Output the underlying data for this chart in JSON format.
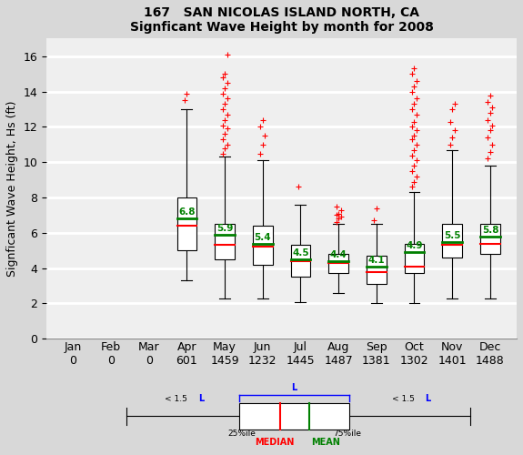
{
  "title_line1": "167   SAN NICOLAS ISLAND NORTH, CA",
  "title_line2": "Signficant Wave Height by month for 2008",
  "ylabel": "Signficant Wave Height, Hs (ft)",
  "months": [
    "Jan",
    "Feb",
    "Mar",
    "Apr",
    "May",
    "Jun",
    "Jul",
    "Aug",
    "Sep",
    "Oct",
    "Nov",
    "Dec"
  ],
  "counts": [
    0,
    0,
    0,
    601,
    1459,
    1232,
    1445,
    1487,
    1381,
    1302,
    1401,
    1488
  ],
  "ylim": [
    0,
    17
  ],
  "yticks": [
    0,
    2,
    4,
    6,
    8,
    10,
    12,
    14,
    16
  ],
  "box_data": {
    "Apr": {
      "q1": 5.0,
      "median": 6.4,
      "q3": 8.0,
      "mean": 6.8,
      "whislo": 3.3,
      "whishi": 13.0,
      "fliers_high": [
        13.5,
        13.9
      ]
    },
    "May": {
      "q1": 4.5,
      "median": 5.3,
      "q3": 6.5,
      "mean": 5.9,
      "whislo": 2.3,
      "whishi": 10.3,
      "fliers_high": [
        10.5,
        10.8,
        11.0,
        11.3,
        11.6,
        11.9,
        12.1,
        12.4,
        12.7,
        13.0,
        13.3,
        13.6,
        13.9,
        14.2,
        14.5,
        14.8,
        15.0,
        16.1
      ]
    },
    "Jun": {
      "q1": 4.2,
      "median": 5.2,
      "q3": 6.4,
      "mean": 5.4,
      "whislo": 2.3,
      "whishi": 10.1,
      "fliers_high": [
        10.5,
        11.0,
        11.5,
        12.0,
        12.4
      ]
    },
    "Jul": {
      "q1": 3.5,
      "median": 4.4,
      "q3": 5.3,
      "mean": 4.5,
      "whislo": 2.1,
      "whishi": 7.6,
      "fliers_high": [
        8.6
      ]
    },
    "Aug": {
      "q1": 3.7,
      "median": 4.3,
      "q3": 4.8,
      "mean": 4.4,
      "whislo": 2.6,
      "whishi": 6.5,
      "fliers_high": [
        6.6,
        6.8,
        6.9,
        7.0,
        7.1,
        7.3,
        7.5
      ]
    },
    "Sep": {
      "q1": 3.1,
      "median": 3.8,
      "q3": 4.7,
      "mean": 4.1,
      "whislo": 2.0,
      "whishi": 6.5,
      "fliers_high": [
        6.7,
        7.4
      ]
    },
    "Oct": {
      "q1": 3.7,
      "median": 4.1,
      "q3": 5.4,
      "mean": 4.9,
      "whislo": 2.0,
      "whishi": 8.3,
      "fliers_high": [
        8.6,
        8.9,
        9.2,
        9.5,
        9.8,
        10.1,
        10.4,
        10.7,
        11.0,
        11.3,
        11.5,
        11.8,
        12.0,
        12.3,
        12.7,
        13.0,
        13.3,
        13.6,
        14.0,
        14.3,
        14.6,
        15.0,
        15.3
      ]
    },
    "Nov": {
      "q1": 4.6,
      "median": 5.3,
      "q3": 6.5,
      "mean": 5.5,
      "whislo": 2.3,
      "whishi": 10.7,
      "fliers_high": [
        11.0,
        11.4,
        11.8,
        12.3,
        13.0,
        13.3
      ]
    },
    "Dec": {
      "q1": 4.8,
      "median": 5.4,
      "q3": 6.5,
      "mean": 5.8,
      "whislo": 2.3,
      "whishi": 9.8,
      "fliers_high": [
        10.2,
        10.6,
        11.0,
        11.4,
        11.8,
        12.1,
        12.4,
        12.8,
        13.1,
        13.4,
        13.8
      ]
    }
  },
  "active_months": [
    "Apr",
    "May",
    "Jun",
    "Jul",
    "Aug",
    "Sep",
    "Oct",
    "Nov",
    "Dec"
  ],
  "box_color": "white",
  "median_color": "#ff0000",
  "mean_color": "#008000",
  "flier_color": "#ff0000",
  "whisker_color": "black",
  "box_edge_color": "black",
  "background_color": "#d8d8d8",
  "plot_bg_color": "#efefef",
  "grid_color": "white",
  "title_fontsize": 10,
  "label_fontsize": 9,
  "tick_fontsize": 9
}
